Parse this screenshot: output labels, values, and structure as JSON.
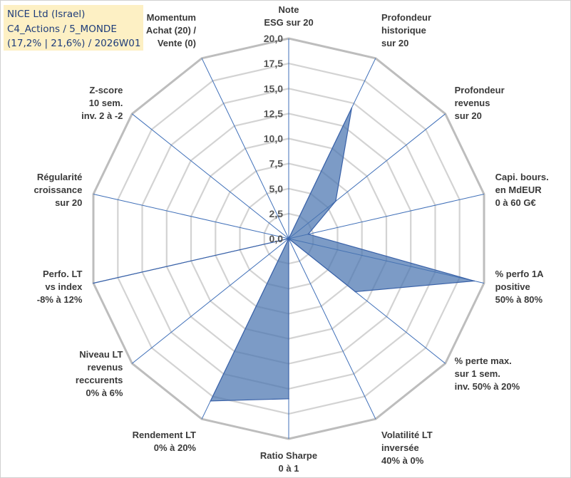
{
  "header": {
    "line1": "NICE Ltd (Israel)",
    "line2": "C4_Actions / 5_MONDE",
    "line3": "(17,2% | 21,6%) / 2026W01"
  },
  "chart_data": {
    "type": "radar",
    "title": "NICE Ltd (Israel)",
    "rmin": 0,
    "rmax": 20,
    "rings": [
      2.5,
      5,
      7.5,
      10,
      12.5,
      15,
      17.5,
      20
    ],
    "tick_labels": [
      "0,0",
      "2,5",
      "5,0",
      "7,5",
      "10,0",
      "12,5",
      "15,0",
      "17,5",
      "20,0"
    ],
    "axes": [
      {
        "label": [
          "Note",
          "ESG sur 20"
        ]
      },
      {
        "label": [
          "Profondeur",
          "historique",
          "sur 20"
        ]
      },
      {
        "label": [
          "Profondeur",
          "revenus",
          "sur 20"
        ]
      },
      {
        "label": [
          "Capi. bours.",
          "en MdEUR",
          "0 à 60 G€"
        ]
      },
      {
        "label": [
          "% perfo 1A",
          "positive",
          "50% à 80%"
        ]
      },
      {
        "label": [
          "% perte max.",
          "sur 1 sem.",
          "inv. 50% à 20%"
        ]
      },
      {
        "label": [
          "Volatilité LT",
          "inversée",
          "40% à 0%"
        ]
      },
      {
        "label": [
          "Ratio Sharpe",
          "0 à 1"
        ]
      },
      {
        "label": [
          "Rendement LT",
          "0% à 20%"
        ]
      },
      {
        "label": [
          "Niveau LT",
          "revenus",
          "reccurents",
          "0% à 6%"
        ]
      },
      {
        "label": [
          "Perfo. LT",
          "vs index",
          "-8% à 12%"
        ]
      },
      {
        "label": [
          "Régularité",
          "croissance",
          "sur 20"
        ]
      },
      {
        "label": [
          "Z-score",
          "10 sem.",
          "inv. 2 à -2"
        ]
      },
      {
        "label": [
          "Momentum",
          "Achat (20) /",
          "Vente (0)"
        ]
      }
    ],
    "series": [
      {
        "name": "NICE Ltd (Israel)",
        "color": "#4a74b0",
        "values": [
          0,
          14.5,
          6.0,
          2.0,
          19.0,
          8.5,
          0,
          16.0,
          18.0,
          0,
          20.0,
          0,
          0,
          0
        ]
      }
    ]
  }
}
